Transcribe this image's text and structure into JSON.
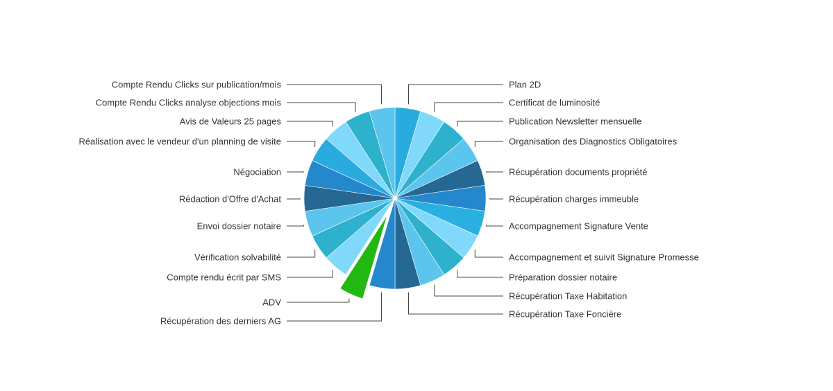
{
  "chart_data": {
    "type": "pie",
    "values": [
      1,
      1,
      1,
      1,
      1,
      1,
      1,
      1,
      1,
      1,
      1,
      1,
      1,
      1,
      1,
      1,
      1,
      1,
      1,
      1,
      1,
      1
    ],
    "categories": [
      "Plan 2D",
      "Certificat de luminosité",
      "Publication Newsletter mensuelle",
      "Organisation des Diagnostics Obligatoires",
      "Récupération documents propriété",
      "Récupération charges immeuble",
      "Accompagnement Signature Vente",
      "Accompagnement et suivit Signature Promesse",
      "Préparation dossier notaire",
      "Récupération Taxe Habitation",
      "Récupération Taxe Foncière",
      "Récupération des derniers AG",
      "ADV",
      "Compte rendu écrit par SMS",
      "Vérification solvabilité",
      "Envoi dossier notaire",
      "Rédaction d'Offre d'Achat",
      "Négociation",
      "Réalisation avec le vendeur d'un planning de visite",
      "Avis de Valeurs 25 pages",
      "Compte Rendu Clicks analyse objections mois",
      "Compte Rendu Clicks sur publication/mois"
    ],
    "colors": [
      "#29abdf",
      "#80d9fa",
      "#2eb1cc",
      "#5cc5ee",
      "#256894",
      "#2588cd",
      "#29b0e0",
      "#80d9fa",
      "#2eb1cc",
      "#5cc5ee",
      "#256894",
      "#2588cd",
      "#22b814",
      "#80d9fa",
      "#2eb1cc",
      "#5cc5ee",
      "#256894",
      "#2588cd",
      "#29abdf",
      "#80d9fa",
      "#2eb1cc",
      "#5cc5ee"
    ],
    "exploded_category": "ADV",
    "start_angle_deg": 0,
    "direction": "clockwise"
  }
}
